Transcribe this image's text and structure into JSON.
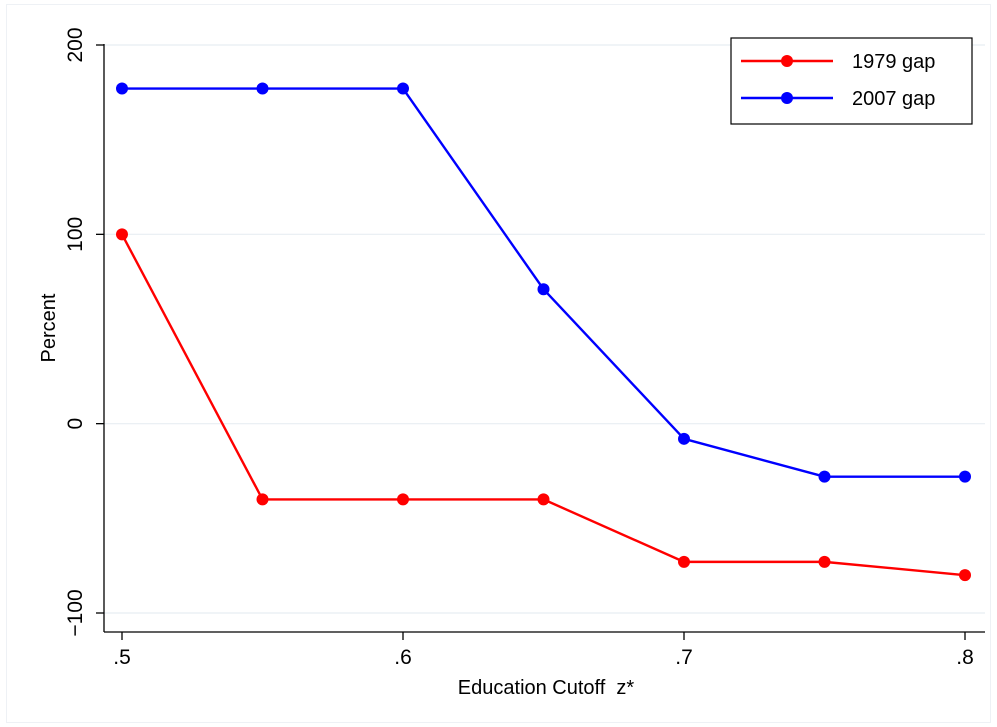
{
  "chart_data": {
    "type": "line",
    "title": "",
    "xlabel": "Education Cutoff  z*",
    "ylabel": "Percent",
    "x": [
      0.5,
      0.55,
      0.6,
      0.65,
      0.7,
      0.75,
      0.8
    ],
    "xticks": [
      0.5,
      0.6,
      0.7,
      0.8
    ],
    "xtick_labels": [
      ".5",
      ".6",
      ".7",
      ".8"
    ],
    "yticks": [
      -100,
      0,
      100,
      200
    ],
    "ytick_labels": [
      "−100",
      "0",
      "100",
      "200"
    ],
    "xlim": [
      0.5,
      0.8
    ],
    "ylim": [
      -100,
      200
    ],
    "grid": true,
    "legend_position": "top-right",
    "series": [
      {
        "name": "1979 gap",
        "color": "#ff0000",
        "values": [
          100,
          -40,
          -40,
          -40,
          -73,
          -73,
          -80
        ]
      },
      {
        "name": "2007 gap",
        "color": "#0000ff",
        "values": [
          177,
          177,
          177,
          71,
          -8,
          -28,
          -28
        ]
      }
    ]
  }
}
